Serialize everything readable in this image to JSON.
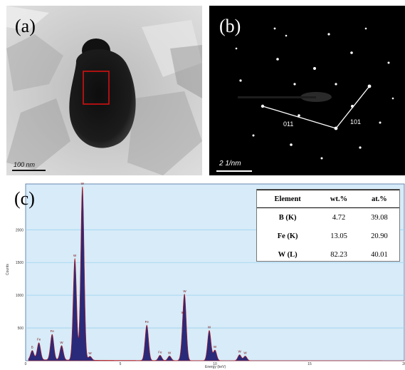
{
  "panels": {
    "a": {
      "label": "(a)",
      "scale_bar": "100 nm"
    },
    "b": {
      "label": "(b)",
      "scale_bar": "2 1/nm",
      "index_left": "011",
      "index_right": "101"
    },
    "c": {
      "label": "(c)"
    }
  },
  "eds_table": {
    "headers": [
      "Element",
      "wt.%",
      "at.%"
    ],
    "rows": [
      {
        "element": "B (K)",
        "wt": "4.72",
        "at": "39.08"
      },
      {
        "element": "Fe (K)",
        "wt": "13.05",
        "at": "20.90"
      },
      {
        "element": "W (L)",
        "wt": "82.23",
        "at": "40.01"
      }
    ]
  },
  "chart_data": {
    "type": "line",
    "title": "",
    "xlabel": "Energy (keV)",
    "ylabel": "Counts",
    "xlim": [
      0,
      20
    ],
    "ylim": [
      0,
      2700
    ],
    "yticks": [
      500,
      1000,
      1500,
      2000
    ],
    "xticks": [
      0,
      5,
      10,
      15,
      20
    ],
    "peaks": [
      {
        "x": 0.35,
        "y": 140,
        "label": "B"
      },
      {
        "x": 0.7,
        "y": 260,
        "label": "Fe"
      },
      {
        "x": 1.4,
        "y": 390,
        "label": "Fe"
      },
      {
        "x": 1.9,
        "y": 220,
        "label": "W"
      },
      {
        "x": 2.6,
        "y": 1550,
        "label": "W"
      },
      {
        "x": 3.0,
        "y": 2650,
        "label": "W"
      },
      {
        "x": 3.4,
        "y": 60,
        "label": "W"
      },
      {
        "x": 6.4,
        "y": 540,
        "label": "Fe"
      },
      {
        "x": 7.1,
        "y": 80,
        "label": "Fe"
      },
      {
        "x": 7.6,
        "y": 70,
        "label": "W"
      },
      {
        "x": 8.3,
        "y": 200,
        "label": "W"
      },
      {
        "x": 8.4,
        "y": 900,
        "label": "W"
      },
      {
        "x": 9.7,
        "y": 460,
        "label": "W"
      },
      {
        "x": 10.0,
        "y": 160,
        "label": "W"
      },
      {
        "x": 11.3,
        "y": 90,
        "label": "W"
      },
      {
        "x": 11.6,
        "y": 70,
        "label": "W"
      }
    ],
    "colors": {
      "plot_bg": "#d7ebf8",
      "grid": "#9bd3ef",
      "fill": "#2a2a7a",
      "edge": "#c01a1a"
    }
  }
}
